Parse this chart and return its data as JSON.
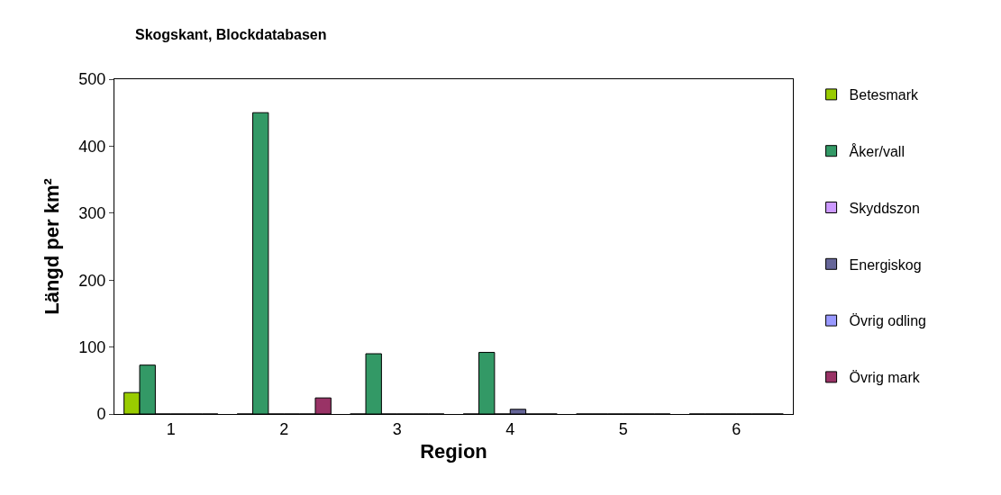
{
  "chart_data": {
    "type": "bar",
    "title": "Skogskant, Blockdatabasen",
    "xlabel": "Region",
    "ylabel": "Längd per km²",
    "categories": [
      "1",
      "2",
      "3",
      "4",
      "5",
      "6"
    ],
    "series": [
      {
        "name": "Betesmark",
        "color": "#99cc00",
        "values": [
          32,
          0,
          0,
          0,
          0,
          0
        ]
      },
      {
        "name": "Åker/vall",
        "color": "#339966",
        "values": [
          73,
          450,
          90,
          92,
          0,
          0
        ]
      },
      {
        "name": "Skyddszon",
        "color": "#cc99ff",
        "values": [
          0,
          0,
          0,
          0,
          0,
          0
        ]
      },
      {
        "name": "Energiskog",
        "color": "#666699",
        "values": [
          0,
          0,
          0,
          7,
          0,
          0
        ]
      },
      {
        "name": "Övrig odling",
        "color": "#9999ff",
        "values": [
          0,
          0,
          0,
          0,
          0,
          0
        ]
      },
      {
        "name": "Övrig mark",
        "color": "#993366",
        "values": [
          0,
          24,
          0,
          0,
          0,
          0
        ]
      }
    ],
    "ylim": [
      0,
      500
    ],
    "yticks": [
      0,
      100,
      200,
      300,
      400,
      500
    ],
    "legend": "right"
  }
}
